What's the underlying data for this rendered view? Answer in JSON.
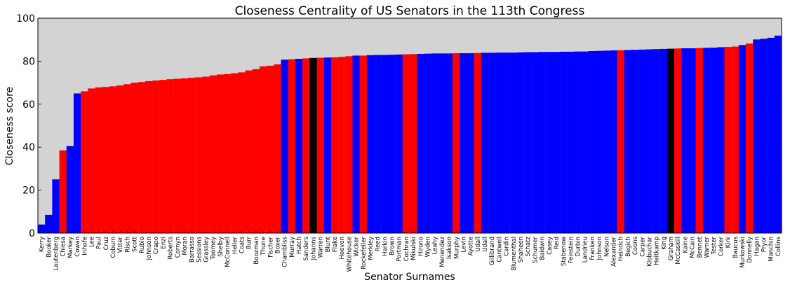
{
  "chart_data": {
    "type": "bar",
    "title": "Closeness Centrality of US Senators in the 113th Congress",
    "xlabel": "Senator Surnames",
    "ylabel": "Closeness score",
    "ylim": [
      0,
      100
    ],
    "yticks": [
      "0",
      "20",
      "40",
      "60",
      "80",
      "100"
    ],
    "grid": false,
    "legend": "none",
    "colors": {
      "D": "#0000ff",
      "R": "#ff0000",
      "I": "#000000",
      "background": "#d3d3d3"
    },
    "bars": [
      {
        "name": "Kerry",
        "value": 4,
        "party": "D"
      },
      {
        "name": "Booker",
        "value": 8.5,
        "party": "D"
      },
      {
        "name": "Lautenberg",
        "value": 25,
        "party": "D"
      },
      {
        "name": "Chiesa",
        "value": 38.5,
        "party": "R"
      },
      {
        "name": "Markey",
        "value": 40.5,
        "party": "D"
      },
      {
        "name": "Cowan",
        "value": 65,
        "party": "D"
      },
      {
        "name": "Inhofe",
        "value": 66,
        "party": "R"
      },
      {
        "name": "Lee",
        "value": 67.3,
        "party": "R"
      },
      {
        "name": "Paul",
        "value": 67.8,
        "party": "R"
      },
      {
        "name": "Cruz",
        "value": 68,
        "party": "R"
      },
      {
        "name": "Coburn",
        "value": 68.3,
        "party": "R"
      },
      {
        "name": "Vitter",
        "value": 68.7,
        "party": "R"
      },
      {
        "name": "Risch",
        "value": 69.3,
        "party": "R"
      },
      {
        "name": "Scott",
        "value": 70,
        "party": "R"
      },
      {
        "name": "Rubio",
        "value": 70.3,
        "party": "R"
      },
      {
        "name": "Johnson",
        "value": 70.7,
        "party": "R"
      },
      {
        "name": "Crapo",
        "value": 71,
        "party": "R"
      },
      {
        "name": "Enzi",
        "value": 71.3,
        "party": "R"
      },
      {
        "name": "Roberts",
        "value": 71.6,
        "party": "R"
      },
      {
        "name": "Cornyn",
        "value": 71.8,
        "party": "R"
      },
      {
        "name": "Moran",
        "value": 72,
        "party": "R"
      },
      {
        "name": "Barrasso",
        "value": 72.3,
        "party": "R"
      },
      {
        "name": "Sessions",
        "value": 72.5,
        "party": "R"
      },
      {
        "name": "Grassley",
        "value": 72.8,
        "party": "R"
      },
      {
        "name": "Toomey",
        "value": 73.4,
        "party": "R"
      },
      {
        "name": "Shelby",
        "value": 73.8,
        "party": "R"
      },
      {
        "name": "McConnell",
        "value": 74,
        "party": "R"
      },
      {
        "name": "Heller",
        "value": 74.4,
        "party": "R"
      },
      {
        "name": "Coats",
        "value": 74.8,
        "party": "R"
      },
      {
        "name": "Burr",
        "value": 75.7,
        "party": "R"
      },
      {
        "name": "Boozman",
        "value": 76.3,
        "party": "R"
      },
      {
        "name": "Thune",
        "value": 77.6,
        "party": "R"
      },
      {
        "name": "Fischer",
        "value": 77.9,
        "party": "R"
      },
      {
        "name": "Boxer",
        "value": 78.5,
        "party": "R"
      },
      {
        "name": "Chambliss",
        "value": 80.7,
        "party": "D"
      },
      {
        "name": "Murray",
        "value": 80.9,
        "party": "R"
      },
      {
        "name": "Hatch",
        "value": 81.1,
        "party": "D"
      },
      {
        "name": "Sanders",
        "value": 81.3,
        "party": "R"
      },
      {
        "name": "Johanns",
        "value": 81.5,
        "party": "I"
      },
      {
        "name": "Warren",
        "value": 81.6,
        "party": "R"
      },
      {
        "name": "Blunt",
        "value": 81.7,
        "party": "D"
      },
      {
        "name": "Flake",
        "value": 81.8,
        "party": "R"
      },
      {
        "name": "Hoeven",
        "value": 82,
        "party": "R"
      },
      {
        "name": "Whitehouse",
        "value": 82.3,
        "party": "R"
      },
      {
        "name": "Wicker",
        "value": 82.6,
        "party": "D"
      },
      {
        "name": "Rockefeller",
        "value": 82.6,
        "party": "R"
      },
      {
        "name": "Merkley",
        "value": 82.8,
        "party": "D"
      },
      {
        "name": "Reed",
        "value": 82.9,
        "party": "D"
      },
      {
        "name": "Harkin",
        "value": 82.9,
        "party": "D"
      },
      {
        "name": "Brown",
        "value": 83,
        "party": "D"
      },
      {
        "name": "Portman",
        "value": 83.1,
        "party": "D"
      },
      {
        "name": "Cochran",
        "value": 83.2,
        "party": "R"
      },
      {
        "name": "Mikulski",
        "value": 83.3,
        "party": "R"
      },
      {
        "name": "Hirono",
        "value": 83.4,
        "party": "D"
      },
      {
        "name": "Wyden",
        "value": 83.5,
        "party": "D"
      },
      {
        "name": "Leahy",
        "value": 83.6,
        "party": "D"
      },
      {
        "name": "Menendez",
        "value": 83.6,
        "party": "D"
      },
      {
        "name": "Isakson",
        "value": 83.6,
        "party": "D"
      },
      {
        "name": "Murphy",
        "value": 83.7,
        "party": "R"
      },
      {
        "name": "Levin",
        "value": 83.7,
        "party": "D"
      },
      {
        "name": "Ayotte",
        "value": 83.7,
        "party": "D"
      },
      {
        "name": "Udall",
        "value": 83.8,
        "party": "R"
      },
      {
        "name": "Udall",
        "value": 83.9,
        "party": "D"
      },
      {
        "name": "Gillibrand",
        "value": 83.9,
        "party": "D"
      },
      {
        "name": "Cantwell",
        "value": 84,
        "party": "D"
      },
      {
        "name": "Cardin",
        "value": 84,
        "party": "D"
      },
      {
        "name": "Blumenthal",
        "value": 84,
        "party": "D"
      },
      {
        "name": "Shaheen",
        "value": 84.1,
        "party": "D"
      },
      {
        "name": "Schatz",
        "value": 84.2,
        "party": "D"
      },
      {
        "name": "Schumer",
        "value": 84.2,
        "party": "D"
      },
      {
        "name": "Baldwin",
        "value": 84.3,
        "party": "D"
      },
      {
        "name": "Casey",
        "value": 84.3,
        "party": "D"
      },
      {
        "name": "Reid",
        "value": 84.3,
        "party": "D"
      },
      {
        "name": "Stabenow",
        "value": 84.4,
        "party": "D"
      },
      {
        "name": "Feinstein",
        "value": 84.4,
        "party": "D"
      },
      {
        "name": "Durbin",
        "value": 84.5,
        "party": "D"
      },
      {
        "name": "Landrieu",
        "value": 84.5,
        "party": "D"
      },
      {
        "name": "Franken",
        "value": 84.7,
        "party": "D"
      },
      {
        "name": "Johnson",
        "value": 84.8,
        "party": "D"
      },
      {
        "name": "Nelson",
        "value": 84.9,
        "party": "D"
      },
      {
        "name": "Alexander",
        "value": 85,
        "party": "D"
      },
      {
        "name": "Heinrich",
        "value": 85.1,
        "party": "R"
      },
      {
        "name": "Begich",
        "value": 85.2,
        "party": "D"
      },
      {
        "name": "Coons",
        "value": 85.3,
        "party": "D"
      },
      {
        "name": "Carper",
        "value": 85.4,
        "party": "D"
      },
      {
        "name": "Klobuchar",
        "value": 85.5,
        "party": "D"
      },
      {
        "name": "Heitkamp",
        "value": 85.6,
        "party": "D"
      },
      {
        "name": "King",
        "value": 85.7,
        "party": "D"
      },
      {
        "name": "Graham",
        "value": 85.8,
        "party": "I"
      },
      {
        "name": "McCaskill",
        "value": 85.9,
        "party": "R"
      },
      {
        "name": "Kaine",
        "value": 86,
        "party": "D"
      },
      {
        "name": "McCain",
        "value": 86,
        "party": "D"
      },
      {
        "name": "Bennet",
        "value": 86.1,
        "party": "R"
      },
      {
        "name": "Warner",
        "value": 86.2,
        "party": "D"
      },
      {
        "name": "Tester",
        "value": 86.3,
        "party": "D"
      },
      {
        "name": "Corker",
        "value": 86.5,
        "party": "D"
      },
      {
        "name": "Kirk",
        "value": 86.6,
        "party": "R"
      },
      {
        "name": "Baucus",
        "value": 86.8,
        "party": "R"
      },
      {
        "name": "Murkowski",
        "value": 87.5,
        "party": "D"
      },
      {
        "name": "Donnelly",
        "value": 88.2,
        "party": "R"
      },
      {
        "name": "Hagan",
        "value": 90.1,
        "party": "D"
      },
      {
        "name": "Pryor",
        "value": 90.4,
        "party": "D"
      },
      {
        "name": "Manchin",
        "value": 90.9,
        "party": "D"
      },
      {
        "name": "Collins",
        "value": 91.9,
        "party": "D"
      }
    ]
  }
}
